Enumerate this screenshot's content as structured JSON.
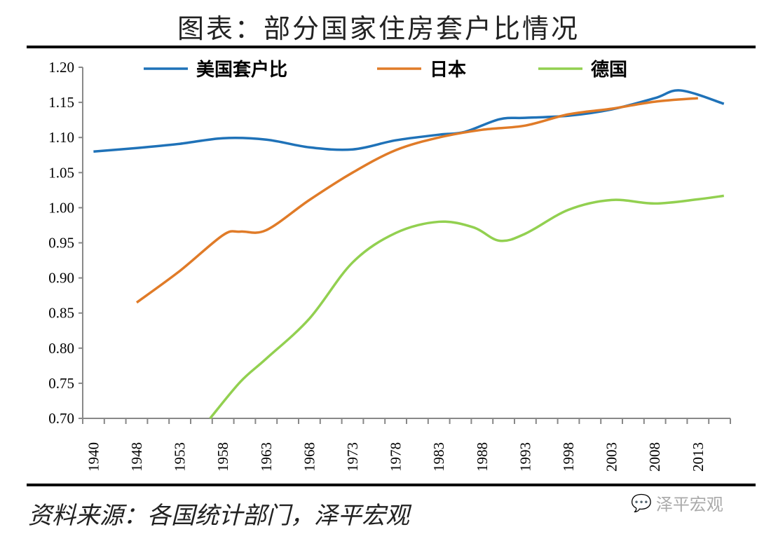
{
  "title": "图表：部分国家住房套户比情况",
  "source": "资料来源：各国统计部门，泽平宏观",
  "watermark": "泽平宏观",
  "chart_data": {
    "type": "line",
    "title": "图表：部分国家住房套户比情况",
    "xlabel": "",
    "ylabel": "",
    "ylim": [
      0.7,
      1.2
    ],
    "yticks": [
      "0.70",
      "0.75",
      "0.80",
      "0.85",
      "0.90",
      "0.95",
      "1.00",
      "1.05",
      "1.10",
      "1.15",
      "1.20"
    ],
    "xticks": [
      "1940",
      "1948",
      "1953",
      "1958",
      "1963",
      "1968",
      "1973",
      "1978",
      "1983",
      "1988",
      "1993",
      "1998",
      "2003",
      "2008",
      "2013"
    ],
    "legend_position": "top",
    "grid": false,
    "series": [
      {
        "name": "美国套户比",
        "color": "#1f72b8",
        "x": [
          1940,
          1948,
          1953,
          1958,
          1963,
          1968,
          1973,
          1978,
          1983,
          1986,
          1990,
          1993,
          1998,
          2003,
          2008,
          2011,
          2016
        ],
        "y": [
          1.08,
          1.085,
          1.091,
          1.099,
          1.097,
          1.086,
          1.083,
          1.096,
          1.104,
          1.108,
          1.126,
          1.128,
          1.131,
          1.14,
          1.156,
          1.167,
          1.148
        ]
      },
      {
        "name": "日本",
        "color": "#e07b28",
        "x": [
          1948,
          1953,
          1958,
          1960,
          1963,
          1968,
          1973,
          1978,
          1983,
          1988,
          1993,
          1998,
          2003,
          2008,
          2013
        ],
        "y": [
          0.865,
          0.91,
          0.961,
          0.966,
          0.968,
          1.011,
          1.05,
          1.082,
          1.1,
          1.111,
          1.117,
          1.133,
          1.141,
          1.151,
          1.156
        ]
      },
      {
        "name": "德国",
        "color": "#92d050",
        "x": [
          1956.5,
          1960,
          1963,
          1968,
          1973,
          1978,
          1983,
          1987,
          1990,
          1993,
          1998,
          2003,
          2008,
          2013,
          2016
        ],
        "y": [
          0.7,
          0.752,
          0.785,
          0.842,
          0.922,
          0.964,
          0.98,
          0.972,
          0.953,
          0.963,
          0.997,
          1.011,
          1.006,
          1.012,
          1.017
        ]
      }
    ]
  }
}
